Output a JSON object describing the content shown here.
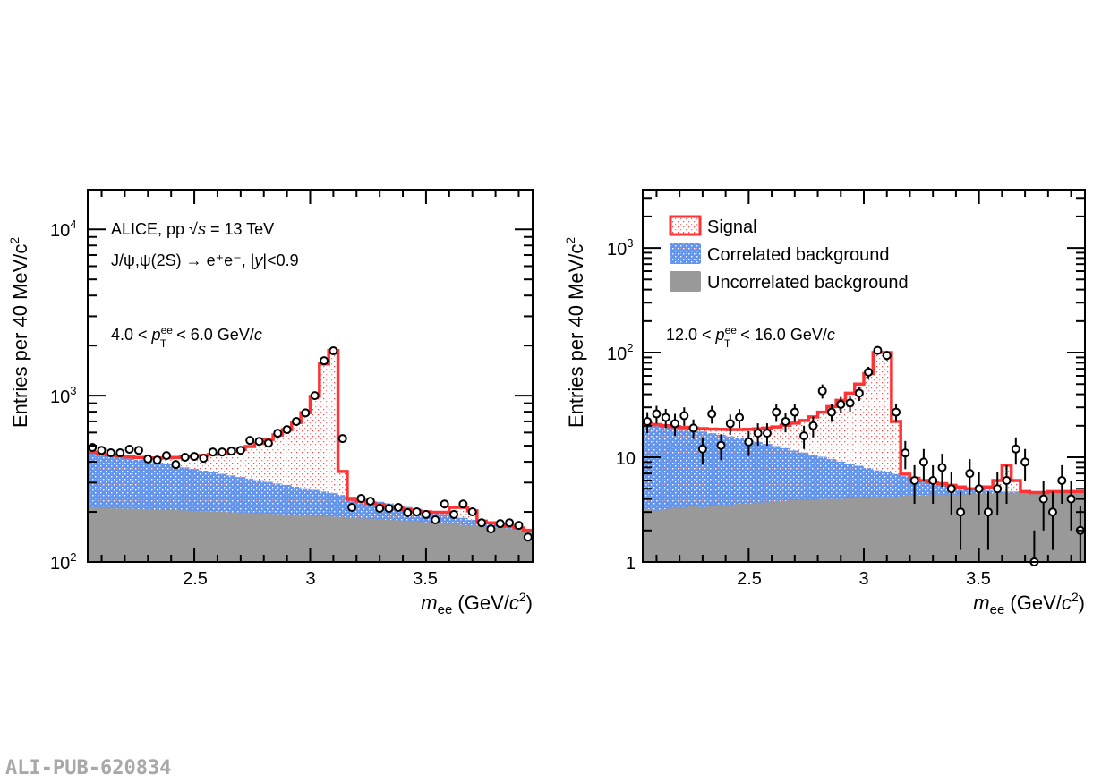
{
  "watermark": "ALI-PUB-620834",
  "colors": {
    "signal": "#ff3333",
    "signal_dot": "#ff5555",
    "correlated": "#6495ed",
    "uncorrelated": "#999999",
    "data": "#000000"
  },
  "legend": {
    "signal": "Signal",
    "correlated": "Correlated background",
    "uncorrelated": "Uncorrelated background"
  },
  "chart_data": [
    {
      "type": "bar",
      "subtype": "stacked-histogram-with-data-points",
      "title": "",
      "annotation_lines": [
        "ALICE, pp √s = 13 TeV",
        "J/ψ,ψ(2S) → e⁺e⁻, |y|<0.9",
        "4.0 < pT(ee) < 6.0 GeV/c"
      ],
      "xlabel": "m_ee (GeV/c²)",
      "ylabel": "Entries per 40 MeV/c²",
      "yscale": "log",
      "xlim": [
        2.04,
        3.96
      ],
      "ylim": [
        100,
        17300
      ],
      "xticks": [
        "2.5",
        "3",
        "3.5"
      ],
      "yticks": [
        "10^2",
        "10^3",
        "10^4"
      ],
      "bin_width": 0.04,
      "bin_centers_start": 2.06,
      "data_points": [
        488,
        469,
        453,
        453,
        476,
        469,
        416,
        410,
        436,
        385,
        426,
        431,
        420,
        458,
        458,
        464,
        469,
        538,
        531,
        518,
        594,
        625,
        699,
        788,
        1000,
        1620,
        1860,
        552,
        213,
        241,
        232,
        210,
        210,
        213,
        198,
        200,
        193,
        179,
        223,
        193,
        223,
        200,
        172,
        158,
        170,
        172,
        166,
        141
      ],
      "uncorrelated": [
        212,
        211,
        210,
        209,
        209,
        208,
        207,
        206,
        205,
        205,
        204,
        203,
        202,
        201,
        200,
        199,
        198,
        197,
        196,
        195,
        194,
        193,
        192,
        191,
        189,
        188,
        187,
        186,
        184,
        183,
        182,
        180,
        179,
        178,
        176,
        175,
        173,
        172,
        170,
        169,
        167,
        166,
        164,
        162,
        161,
        159,
        157,
        155
      ],
      "correlated_total": [
        455,
        445,
        437,
        428,
        420,
        411,
        403,
        394,
        386,
        378,
        370,
        362,
        354,
        346,
        339,
        331,
        324,
        317,
        310,
        303,
        296,
        290,
        283,
        277,
        271,
        265,
        259,
        253,
        247,
        241,
        236,
        230,
        225,
        219,
        214,
        209,
        204,
        199,
        194,
        189,
        184,
        179,
        175,
        171,
        167,
        163,
        158,
        155
      ],
      "signal_total": [
        458,
        447,
        440,
        432,
        428,
        425,
        422,
        421,
        423,
        425,
        428,
        432,
        437,
        443,
        451,
        461,
        475,
        494,
        517,
        545,
        580,
        625,
        690,
        790,
        990,
        1550,
        1870,
        350,
        238,
        232,
        226,
        221,
        216,
        211,
        206,
        202,
        200,
        199,
        199,
        213,
        213,
        203,
        176,
        172,
        168,
        164,
        160,
        155
      ]
    },
    {
      "type": "bar",
      "subtype": "stacked-histogram-with-data-points",
      "title": "",
      "annotation_lines": [
        "12.0 < pT(ee) < 16.0 GeV/c"
      ],
      "xlabel": "m_ee (GeV/c²)",
      "ylabel": "Entries per 40 MeV/c²",
      "yscale": "log",
      "xlim": [
        2.04,
        3.96
      ],
      "ylim": [
        1,
        3600
      ],
      "xticks": [
        "2.5",
        "3",
        "3.5"
      ],
      "yticks": [
        "1",
        "10",
        "10^2",
        "10^3"
      ],
      "legend": [
        "Signal",
        "Correlated background",
        "Uncorrelated background"
      ],
      "legend_position": "top-left",
      "bin_width": 0.04,
      "bin_centers_start": 2.06,
      "data_points": [
        22,
        26,
        24,
        21,
        25,
        19,
        12,
        26,
        13,
        21,
        24,
        14,
        17,
        17,
        27,
        22,
        27,
        16,
        20,
        43,
        27,
        32,
        33,
        41,
        65,
        105,
        94,
        27,
        11,
        6,
        9,
        6,
        8,
        5,
        3,
        7,
        5,
        3,
        5,
        6,
        12,
        9,
        1,
        4,
        3,
        6,
        4,
        2
      ],
      "data_errors": [
        5,
        5,
        5,
        5,
        5,
        4,
        3.5,
        5,
        3.6,
        4.6,
        4.9,
        3.7,
        4.1,
        4.1,
        5.2,
        4.7,
        5.2,
        4,
        4.5,
        6.6,
        5.2,
        5.7,
        5.7,
        6.4,
        8.1,
        10,
        9.7,
        5.2,
        3.3,
        2.4,
        3,
        2.4,
        2.8,
        2.2,
        1.7,
        2.6,
        2.2,
        1.7,
        2.2,
        2.4,
        3.5,
        3,
        1,
        2,
        1.7,
        2.4,
        2,
        1.4
      ],
      "uncorrelated": [
        3.2,
        3.1,
        3.2,
        3.3,
        3.3,
        3.4,
        3.3,
        3.4,
        3.5,
        3.5,
        3.6,
        3.6,
        3.7,
        3.7,
        3.8,
        3.8,
        3.9,
        3.9,
        3.9,
        4.0,
        4.0,
        4.0,
        4.1,
        4.1,
        4.1,
        4.2,
        4.2,
        4.2,
        4.3,
        4.3,
        4.3,
        4.4,
        4.4,
        4.4,
        4.4,
        4.5,
        4.5,
        4.5,
        4.5,
        4.6,
        4.6,
        4.6,
        4.6,
        4.6,
        4.7,
        4.7,
        4.7,
        4.7
      ],
      "correlated_total": [
        21,
        20.5,
        20,
        19.4,
        18.8,
        18.2,
        17.6,
        17.0,
        16.4,
        15.8,
        15.2,
        14.6,
        14.0,
        13.4,
        12.8,
        12.2,
        11.6,
        11.1,
        10.6,
        10.1,
        9.6,
        9.1,
        8.7,
        8.3,
        7.9,
        7.5,
        7.2,
        6.9,
        6.6,
        6.3,
        6.0,
        5.8,
        5.6,
        5.4,
        5.2,
        5.0,
        4.9,
        4.8,
        4.7,
        4.7,
        4.7,
        4.7,
        4.6,
        4.6,
        4.7,
        4.7,
        4.7,
        4.7
      ],
      "signal_total": [
        21,
        20.5,
        20,
        19.6,
        19.3,
        19.0,
        18.8,
        18.6,
        18.5,
        18.4,
        18.4,
        18.5,
        18.7,
        19,
        19.5,
        20.2,
        21.2,
        22.5,
        24.3,
        27,
        30.5,
        35,
        41,
        50,
        63,
        100,
        100,
        22,
        6.9,
        6.3,
        6.0,
        5.8,
        5.6,
        5.4,
        5.2,
        5.0,
        5.0,
        5.2,
        6.0,
        8.4,
        6.0,
        4.7,
        4.6,
        4.6,
        4.7,
        4.7,
        4.7,
        4.7
      ]
    }
  ],
  "panels": [
    {
      "ylabel": "Entries per 40 MeV/c",
      "ylabel_sup": "2",
      "xlabel_m": "m",
      "xlabel_sub": "ee",
      "xlabel_rest": " (GeV/",
      "xlabel_c": "c",
      "xlabel_sup": "2",
      "xlabel_close": ")",
      "line1_a": "ALICE, pp ",
      "line1_sqrt": "√",
      "line1_s": "s",
      "line1_b": " = 13 TeV",
      "line2": "J/ψ,ψ(2S) → e⁺e⁻, |",
      "line2_y": "y",
      "line2_b": "|<0.9",
      "pt_a": "4.0 < ",
      "pt_p": "p",
      "pt_sup": "ee",
      "pt_sub": "T",
      "pt_b": " < 6.0 GeV/",
      "pt_c": "c"
    },
    {
      "ylabel": "Entries per 40 MeV/c",
      "ylabel_sup": "2",
      "xlabel_m": "m",
      "xlabel_sub": "ee",
      "xlabel_rest": " (GeV/",
      "xlabel_c": "c",
      "xlabel_sup": "2",
      "xlabel_close": ")",
      "pt_a": "12.0 < ",
      "pt_p": "p",
      "pt_sup": "ee",
      "pt_sub": "T",
      "pt_b": " < 16.0 GeV/",
      "pt_c": "c"
    }
  ]
}
